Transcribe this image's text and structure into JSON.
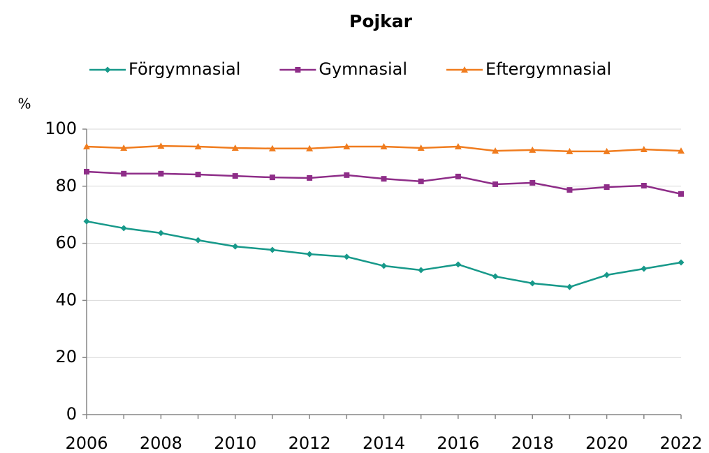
{
  "chart_data": {
    "type": "line",
    "title": "Pojkar",
    "y_label": "%",
    "x": [
      2006,
      2007,
      2008,
      2009,
      2010,
      2011,
      2012,
      2013,
      2014,
      2015,
      2016,
      2017,
      2018,
      2019,
      2020,
      2021,
      2022
    ],
    "series": [
      {
        "name": "Förgymnasial",
        "color": "#17998a",
        "marker": "diamond",
        "values": [
          67.7,
          65.3,
          63.6,
          61.1,
          58.9,
          57.7,
          56.2,
          55.3,
          52.1,
          50.6,
          52.6,
          48.4,
          46.0,
          44.7,
          48.9,
          51.1,
          53.3
        ]
      },
      {
        "name": "Gymnasial",
        "color": "#8e2d88",
        "marker": "square",
        "values": [
          85.1,
          84.4,
          84.4,
          84.1,
          83.6,
          83.1,
          82.9,
          83.9,
          82.6,
          81.7,
          83.4,
          80.7,
          81.2,
          78.7,
          79.7,
          80.2,
          77.3
        ]
      },
      {
        "name": "Eftergymnasial",
        "color": "#f07c1e",
        "marker": "triangle",
        "values": [
          93.9,
          93.4,
          94.1,
          93.9,
          93.4,
          93.2,
          93.2,
          93.9,
          93.9,
          93.4,
          93.9,
          92.4,
          92.7,
          92.2,
          92.2,
          92.9,
          92.4
        ]
      }
    ],
    "xlim": [
      2006,
      2022
    ],
    "xticks": [
      2006,
      2008,
      2010,
      2012,
      2014,
      2016,
      2018,
      2020,
      2022
    ],
    "ylim": [
      0,
      100
    ],
    "yticks": [
      0,
      20,
      40,
      60,
      80,
      100
    ],
    "grid": true,
    "legend": "top"
  }
}
